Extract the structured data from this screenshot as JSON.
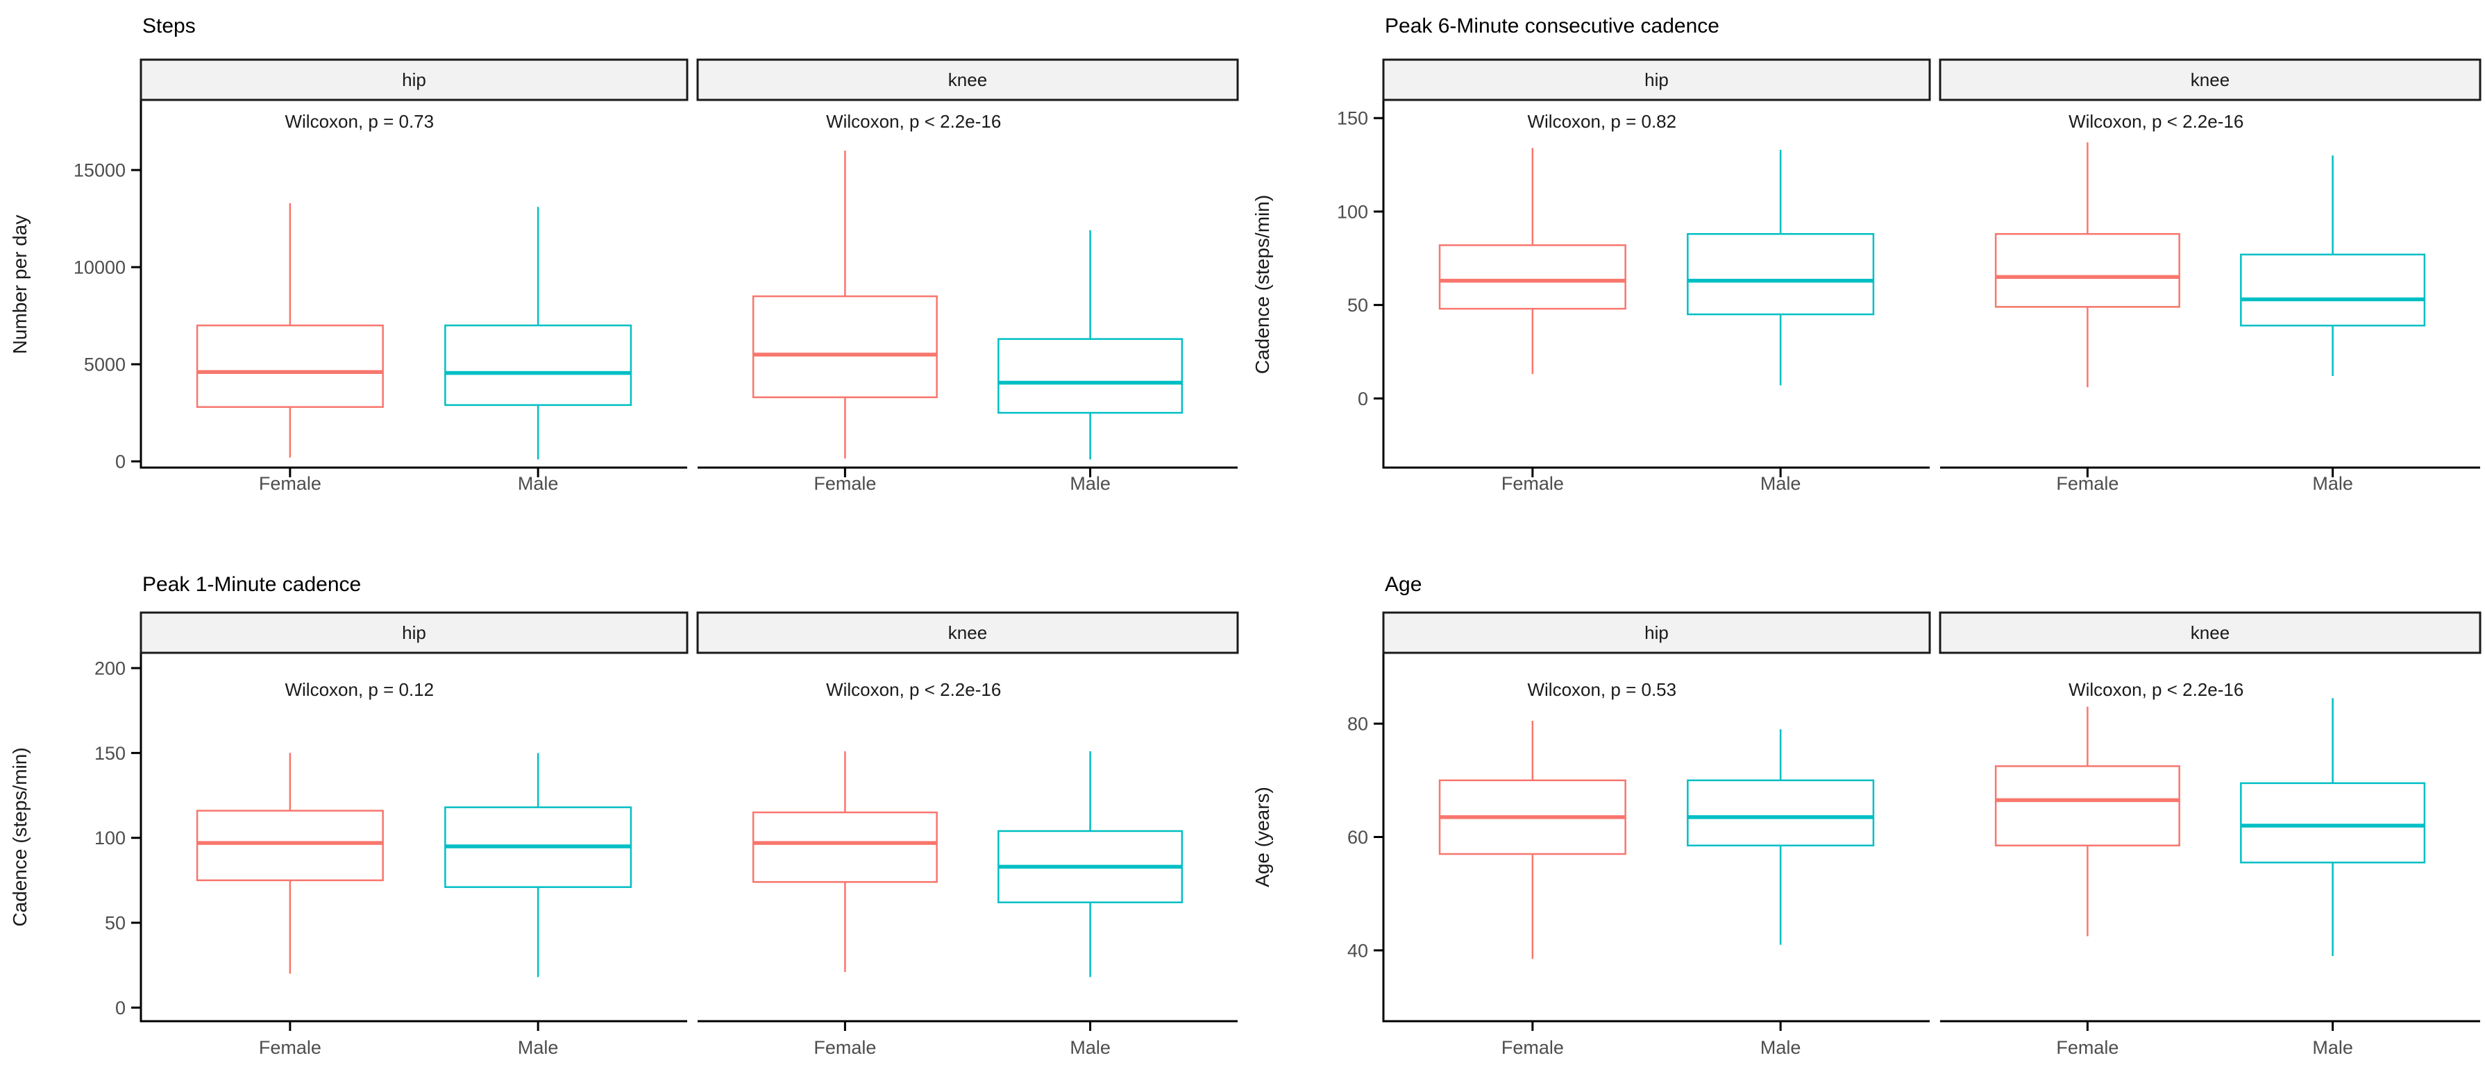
{
  "page": {
    "background": "#ffffff",
    "description": "Four faceted box-plot panels comparing Female vs Male by implant site (hip, knee)"
  },
  "colors": {
    "female": "#F8766D",
    "male": "#00BFC4",
    "box_fill": "#ffffff",
    "axis_line": "#000000",
    "tick_text": "#4d4d4d",
    "title_text": "#000000",
    "annotation_text": "#1a1a1a",
    "strip_fill": "#F2F2F2",
    "strip_border": "#1a1a1a",
    "strip_text": "#1a1a1a"
  },
  "categories": [
    "Female",
    "Male"
  ],
  "facet_labels": [
    "hip",
    "knee"
  ],
  "chart_data": [
    {
      "id": "steps",
      "type": "box",
      "title": "Steps",
      "ylabel": "Number per day",
      "yticks": [
        0,
        5000,
        10000,
        15000
      ],
      "ylim": [
        -320,
        18540
      ],
      "grid": false,
      "legend": "none",
      "facets": [
        {
          "label": "hip",
          "annotation": "Wilcoxon, p = 0.73",
          "boxes": [
            {
              "group": "Female",
              "whisker_low": 200,
              "q1": 2800,
              "median": 4600,
              "q3": 7000,
              "whisker_high": 13300
            },
            {
              "group": "Male",
              "whisker_low": 100,
              "q1": 2900,
              "median": 4550,
              "q3": 7000,
              "whisker_high": 13100
            }
          ]
        },
        {
          "label": "knee",
          "annotation": "Wilcoxon, p < 2.2e-16",
          "boxes": [
            {
              "group": "Female",
              "whisker_low": 150,
              "q1": 3300,
              "median": 5500,
              "q3": 8500,
              "whisker_high": 16000
            },
            {
              "group": "Male",
              "whisker_low": 100,
              "q1": 2500,
              "median": 4050,
              "q3": 6300,
              "whisker_high": 11900
            }
          ]
        }
      ]
    },
    {
      "id": "peak-6-minute-cadence",
      "type": "box",
      "title": "Peak 6-Minute consecutive cadence",
      "ylabel": "Cadence (steps/min)",
      "yticks": [
        0,
        50,
        100,
        150
      ],
      "ylim": [
        -37,
        159
      ],
      "grid": false,
      "legend": "none",
      "facets": [
        {
          "label": "hip",
          "annotation": "Wilcoxon, p = 0.82",
          "boxes": [
            {
              "group": "Female",
              "whisker_low": 13,
              "q1": 48,
              "median": 63,
              "q3": 82,
              "whisker_high": 134
            },
            {
              "group": "Male",
              "whisker_low": 7,
              "q1": 45,
              "median": 63,
              "q3": 88,
              "whisker_high": 133
            }
          ]
        },
        {
          "label": "knee",
          "annotation": "Wilcoxon, p < 2.2e-16",
          "boxes": [
            {
              "group": "Female",
              "whisker_low": 6,
              "q1": 49,
              "median": 65,
              "q3": 88,
              "whisker_high": 137
            },
            {
              "group": "Male",
              "whisker_low": 12,
              "q1": 39,
              "median": 53,
              "q3": 77,
              "whisker_high": 130
            }
          ]
        }
      ]
    },
    {
      "id": "peak-1-minute-cadence",
      "type": "box",
      "title": "Peak 1-Minute cadence",
      "ylabel": "Cadence (steps/min)",
      "yticks": [
        0,
        50,
        100,
        150,
        200
      ],
      "ylim": [
        -8,
        209
      ],
      "grid": false,
      "legend": "none",
      "facets": [
        {
          "label": "hip",
          "annotation": "Wilcoxon, p = 0.12",
          "boxes": [
            {
              "group": "Female",
              "whisker_low": 20,
              "q1": 75,
              "median": 97,
              "q3": 116,
              "whisker_high": 150
            },
            {
              "group": "Male",
              "whisker_low": 18,
              "q1": 71,
              "median": 95,
              "q3": 118,
              "whisker_high": 150
            }
          ]
        },
        {
          "label": "knee",
          "annotation": "Wilcoxon, p < 2.2e-16",
          "boxes": [
            {
              "group": "Female",
              "whisker_low": 21,
              "q1": 74,
              "median": 97,
              "q3": 115,
              "whisker_high": 151
            },
            {
              "group": "Male",
              "whisker_low": 18,
              "q1": 62,
              "median": 83,
              "q3": 104,
              "whisker_high": 151
            }
          ]
        }
      ]
    },
    {
      "id": "age",
      "type": "box",
      "title": "Age",
      "ylabel": "Age (years)",
      "yticks": [
        40,
        60,
        80
      ],
      "ylim": [
        27.5,
        92.5
      ],
      "grid": false,
      "legend": "none",
      "facets": [
        {
          "label": "hip",
          "annotation": "Wilcoxon, p = 0.53",
          "boxes": [
            {
              "group": "Female",
              "whisker_low": 38.5,
              "q1": 57,
              "median": 63.5,
              "q3": 70,
              "whisker_high": 80.5
            },
            {
              "group": "Male",
              "whisker_low": 41,
              "q1": 58.5,
              "median": 63.5,
              "q3": 70,
              "whisker_high": 79
            }
          ]
        },
        {
          "label": "knee",
          "annotation": "Wilcoxon, p < 2.2e-16",
          "boxes": [
            {
              "group": "Female",
              "whisker_low": 42.5,
              "q1": 58.5,
              "median": 66.5,
              "q3": 72.5,
              "whisker_high": 83
            },
            {
              "group": "Male",
              "whisker_low": 39,
              "q1": 55.5,
              "median": 62,
              "q3": 69.5,
              "whisker_high": 84.5
            }
          ]
        }
      ]
    }
  ]
}
